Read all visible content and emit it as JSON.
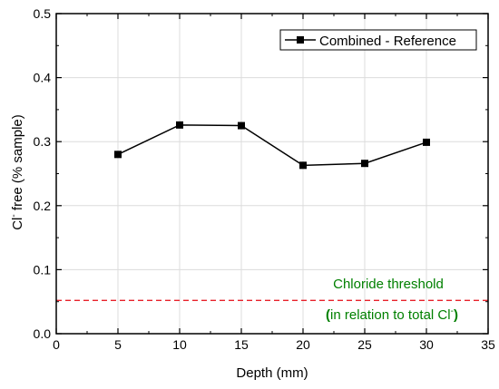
{
  "chart_data": {
    "type": "line",
    "xlabel": "Depth (mm)",
    "ylabel": {
      "prefix": "Cl",
      "sup": "-",
      "suffix": " free (% sample)"
    },
    "xlim": [
      0,
      35
    ],
    "ylim": [
      0,
      0.5
    ],
    "x_ticks": [
      "0",
      "5",
      "10",
      "15",
      "20",
      "25",
      "30",
      "35"
    ],
    "y_ticks": [
      "0.0",
      "0.1",
      "0.2",
      "0.3",
      "0.4",
      "0.5"
    ],
    "grid": true,
    "legend_position": "top-right",
    "series": [
      {
        "name": "Combined - Reference",
        "color": "#000000",
        "marker": "square",
        "x": [
          5,
          10,
          15,
          20,
          25,
          30
        ],
        "y": [
          0.28,
          0.326,
          0.325,
          0.263,
          0.266,
          0.299
        ]
      }
    ],
    "threshold": {
      "value": 0.052,
      "color": "#e8212b",
      "style": "dashed",
      "label_line1": "Chloride threshold",
      "label_line2": {
        "paren_open": "(",
        "text": "in relation to total Cl",
        "sup": "-",
        "paren_close": ")"
      },
      "label_color": "#008000"
    }
  }
}
